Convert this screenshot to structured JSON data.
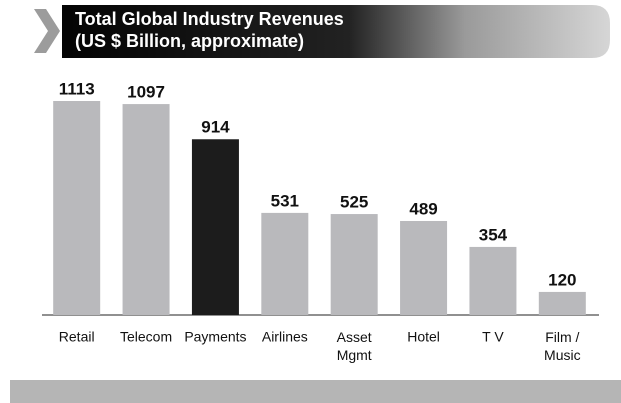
{
  "chart_data": {
    "type": "bar",
    "title": "Total Global Industry  Revenues",
    "subtitle": "(US $ Billion, approximate)",
    "categories": [
      "Retail",
      "Telecom",
      "Payments",
      "Airlines",
      "Asset\nMgmt",
      "Hotel",
      "T V",
      "Film /\nMusic"
    ],
    "values": [
      1113,
      1097,
      914,
      531,
      525,
      489,
      354,
      120
    ],
    "colors": [
      "#b9b9bc",
      "#b9b9bc",
      "#1c1c1c",
      "#b9b9bc",
      "#b9b9bc",
      "#b9b9bc",
      "#b9b9bc",
      "#b9b9bc"
    ]
  }
}
